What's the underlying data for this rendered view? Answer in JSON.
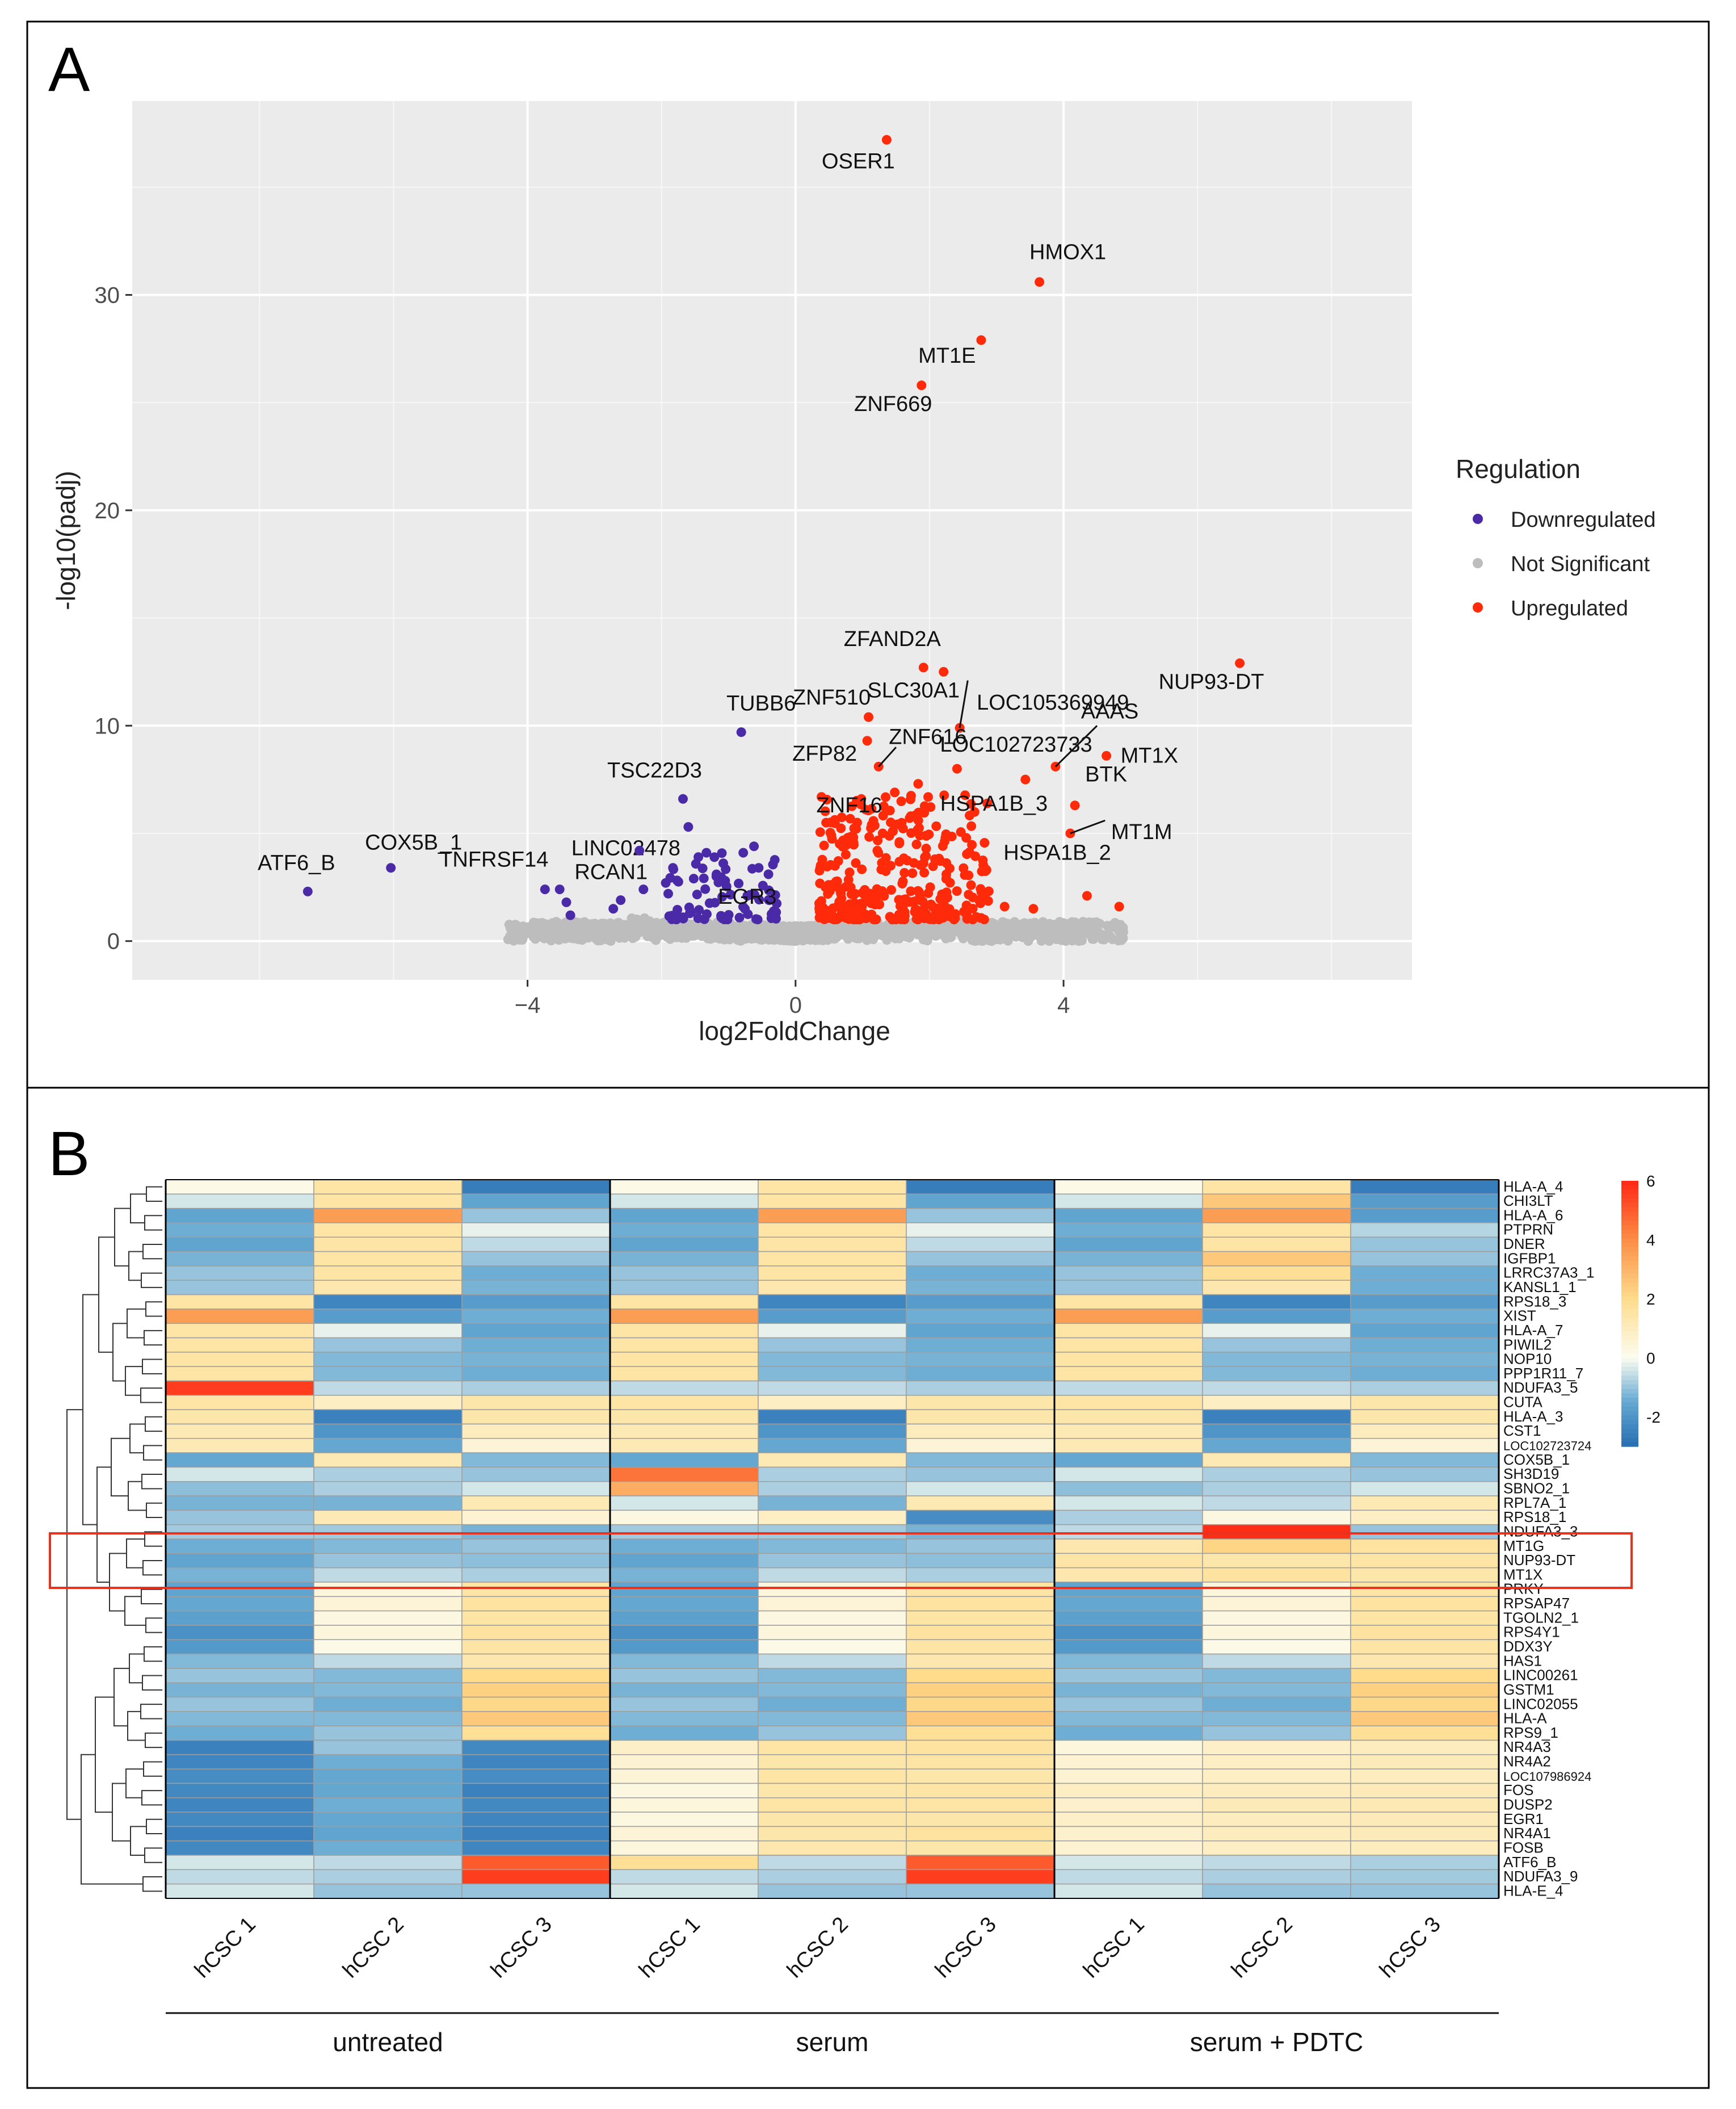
{
  "panels": {
    "a_label": "A",
    "b_label": "B"
  },
  "colors": {
    "down": "#4b2aa8",
    "ns": "#bdbdbd",
    "up": "#ff2a0a",
    "panel_bg": "#ebebeb",
    "highlight": "#e8321e"
  },
  "chart_data": [
    {
      "type": "scatter",
      "title": "",
      "xlabel": "log2FoldChange",
      "ylabel": "-log10(padj)",
      "xlim": [
        -9.9,
        9.2
      ],
      "ylim": [
        -1.8,
        39.0
      ],
      "xticks": [
        -4,
        0,
        4
      ],
      "xtick_labels": [
        "−4",
        "0",
        "4"
      ],
      "yticks": [
        0,
        10,
        20,
        30
      ],
      "ytick_labels": [
        "0",
        "10",
        "20",
        "30"
      ],
      "legend": {
        "title": "Regulation",
        "position": "right",
        "entries": [
          {
            "key": "down",
            "label": "Downregulated"
          },
          {
            "key": "ns",
            "label": "Not Significant"
          },
          {
            "key": "up",
            "label": "Upregulated"
          }
        ]
      },
      "labeled_points": [
        {
          "x": 1.36,
          "y": 37.2,
          "reg": "up",
          "label": "OSER1"
        },
        {
          "x": 3.64,
          "y": 30.6,
          "reg": "up",
          "label": "HMOX1"
        },
        {
          "x": 2.77,
          "y": 27.9,
          "reg": "up",
          "label": "MT1E"
        },
        {
          "x": 1.88,
          "y": 25.8,
          "reg": "up",
          "label": "ZNF669"
        },
        {
          "x": 6.63,
          "y": 12.9,
          "reg": "up",
          "label": "NUP93-DT"
        },
        {
          "x": 1.91,
          "y": 12.7,
          "reg": "up",
          "label": "ZFAND2A"
        },
        {
          "x": 2.21,
          "y": 12.5,
          "reg": "up",
          "label": "SLC30A1"
        },
        {
          "x": 2.45,
          "y": 9.9,
          "reg": "up",
          "label": "LOC105369949"
        },
        {
          "x": 1.09,
          "y": 10.4,
          "reg": "up",
          "label": "ZNF510"
        },
        {
          "x": -0.81,
          "y": 9.7,
          "reg": "down",
          "label": "TUBB6"
        },
        {
          "x": 3.88,
          "y": 8.1,
          "reg": "up",
          "label": "AAAS"
        },
        {
          "x": 4.64,
          "y": 8.6,
          "reg": "up",
          "label": "MT1X"
        },
        {
          "x": 1.07,
          "y": 9.3,
          "reg": "up",
          "label": "ZFP82"
        },
        {
          "x": 1.24,
          "y": 8.1,
          "reg": "up",
          "label": "ZNF616"
        },
        {
          "x": 2.41,
          "y": 8.0,
          "reg": "up",
          "label": "LOC102723733"
        },
        {
          "x": 3.43,
          "y": 7.5,
          "reg": "up",
          "label": "HSPA1B_3"
        },
        {
          "x": 4.17,
          "y": 6.3,
          "reg": "up",
          "label": "BTK"
        },
        {
          "x": 1.48,
          "y": 6.9,
          "reg": "up",
          "label": "ZNF16"
        },
        {
          "x": -1.68,
          "y": 6.6,
          "reg": "down",
          "label": "TSC22D3"
        },
        {
          "x": -1.6,
          "y": 5.3,
          "reg": "down",
          "label": "LINC02478"
        },
        {
          "x": 4.1,
          "y": 5.0,
          "reg": "up",
          "label": "MT1M"
        },
        {
          "x": -2.33,
          "y": 4.2,
          "reg": "down",
          "label": "RCAN1"
        },
        {
          "x": 2.85,
          "y": 3.3,
          "reg": "up",
          "label": "HSPA1B_2"
        },
        {
          "x": -6.04,
          "y": 3.4,
          "reg": "down",
          "label": "COX5B_1"
        },
        {
          "x": -3.74,
          "y": 2.4,
          "reg": "down",
          "label": "TNFRSF14"
        },
        {
          "x": -7.28,
          "y": 2.3,
          "reg": "down",
          "label": "ATF6_B"
        },
        {
          "x": -0.72,
          "y": 2.1,
          "reg": "down",
          "label": "EGR3"
        }
      ],
      "other_significant_points": [
        {
          "x": 0.92,
          "y": 5.5,
          "reg": "up"
        },
        {
          "x": 1.05,
          "y": 6.1,
          "reg": "up"
        },
        {
          "x": 1.3,
          "y": 5.0,
          "reg": "up"
        },
        {
          "x": 1.55,
          "y": 4.6,
          "reg": "up"
        },
        {
          "x": 1.72,
          "y": 5.8,
          "reg": "up"
        },
        {
          "x": 1.95,
          "y": 4.3,
          "reg": "up"
        },
        {
          "x": 2.08,
          "y": 3.8,
          "reg": "up"
        },
        {
          "x": 1.83,
          "y": 7.3,
          "reg": "up"
        },
        {
          "x": 1.22,
          "y": 4.2,
          "reg": "up"
        },
        {
          "x": 0.78,
          "y": 4.8,
          "reg": "up"
        },
        {
          "x": 2.25,
          "y": 3.1,
          "reg": "up"
        },
        {
          "x": 2.62,
          "y": 2.6,
          "reg": "up"
        },
        {
          "x": 3.12,
          "y": 1.6,
          "reg": "up"
        },
        {
          "x": 3.55,
          "y": 1.5,
          "reg": "up"
        },
        {
          "x": 4.35,
          "y": 2.1,
          "reg": "up"
        },
        {
          "x": 4.83,
          "y": 1.6,
          "reg": "up"
        },
        {
          "x": 2.74,
          "y": 1.9,
          "reg": "up"
        },
        {
          "x": 1.42,
          "y": 3.5,
          "reg": "up"
        },
        {
          "x": -2.72,
          "y": 1.5,
          "reg": "down"
        },
        {
          "x": -2.61,
          "y": 1.9,
          "reg": "down"
        },
        {
          "x": -2.27,
          "y": 2.4,
          "reg": "down"
        },
        {
          "x": -1.83,
          "y": 3.4,
          "reg": "down"
        },
        {
          "x": -1.45,
          "y": 3.9,
          "reg": "down"
        },
        {
          "x": -1.33,
          "y": 4.1,
          "reg": "down"
        },
        {
          "x": -1.18,
          "y": 3.1,
          "reg": "down"
        },
        {
          "x": -1.05,
          "y": 2.8,
          "reg": "down"
        },
        {
          "x": -0.78,
          "y": 4.1,
          "reg": "down"
        },
        {
          "x": -0.62,
          "y": 4.4,
          "reg": "down"
        },
        {
          "x": -0.55,
          "y": 3.4,
          "reg": "down"
        },
        {
          "x": -3.52,
          "y": 2.4,
          "reg": "down"
        },
        {
          "x": -3.42,
          "y": 1.8,
          "reg": "down"
        },
        {
          "x": -3.36,
          "y": 1.2,
          "reg": "down"
        },
        {
          "x": -1.9,
          "y": 2.2,
          "reg": "down"
        },
        {
          "x": -1.52,
          "y": 2.9,
          "reg": "down"
        }
      ],
      "cluster_regions": [
        {
          "reg": "up",
          "x_range": [
            0.35,
            2.9
          ],
          "y_range": [
            1.0,
            6.8
          ],
          "count": 320
        },
        {
          "reg": "down",
          "x_range": [
            -2.0,
            -0.28
          ],
          "y_range": [
            1.0,
            4.3
          ],
          "count": 70
        },
        {
          "reg": "ns",
          "x_range": [
            -4.3,
            4.9
          ],
          "y_range": [
            0,
            1.3
          ],
          "count": 1400
        }
      ]
    },
    {
      "type": "heatmap",
      "columns": [
        "hCSC 1",
        "hCSC 2",
        "hCSC 3",
        "hCSC 1",
        "hCSC 2",
        "hCSC 3",
        "hCSC 1",
        "hCSC 2",
        "hCSC 3"
      ],
      "groups": [
        {
          "label": "untreated",
          "span": [
            0,
            2
          ]
        },
        {
          "label": "serum",
          "span": [
            3,
            5
          ]
        },
        {
          "label": "serum + PDTC",
          "span": [
            6,
            8
          ]
        }
      ],
      "rows": [
        "HLA-A_4",
        "CHI3LT",
        "HLA-A_6",
        "PTPRN",
        "DNER",
        "IGFBP1",
        "LRRC37A3_1",
        "KANSL1_1",
        "RPS18_3",
        "XIST",
        "HLA-A_7",
        "PIWIL2",
        "NOP10",
        "PPP1R11_7",
        "NDUFA3_5",
        "CUTA",
        "HLA-A_3",
        "CST1",
        "LOC102723724",
        "COX5B_1",
        "SH3D19",
        "SBNO2_1",
        "RPL7A_1",
        "RPS18_1",
        "NDUFA3_3",
        "MT1G",
        "NUP93-DT",
        "MT1X",
        "PRKY",
        "RPSAP47",
        "TGOLN2_1",
        "RPS4Y1",
        "DDX3Y",
        "HAS1",
        "LINC00261",
        "GSTM1",
        "LINC02055",
        "HLA-A",
        "RPS9_1",
        "NR4A3",
        "NR4A2",
        "LOC107986924",
        "FOS",
        "DUSP2",
        "EGR1",
        "NR4A1",
        "FOSB",
        "ATF6_B",
        "NDUFA3_9",
        "HLA-E_4"
      ],
      "values": [
        [
          0.2,
          1.5,
          -2.6,
          0.2,
          1.5,
          -2.6,
          0.2,
          1.5,
          -2.6
        ],
        [
          -0.4,
          1.5,
          -1.6,
          -0.4,
          1.5,
          -1.6,
          -0.4,
          2.5,
          -1.8
        ],
        [
          -1.6,
          3.6,
          -1.0,
          -1.6,
          3.6,
          -1.0,
          -1.6,
          3.6,
          -1.8
        ],
        [
          -1.4,
          1.5,
          -0.2,
          -1.4,
          1.5,
          -0.2,
          -1.4,
          1.5,
          -0.7
        ],
        [
          -1.6,
          1.5,
          -0.6,
          -1.6,
          1.5,
          -0.6,
          -1.6,
          1.5,
          -1.0
        ],
        [
          -1.3,
          1.5,
          -1.0,
          -1.3,
          1.5,
          -1.0,
          -1.3,
          2.5,
          -1.0
        ],
        [
          -1.0,
          1.5,
          -1.4,
          -1.0,
          1.5,
          -1.4,
          -1.0,
          1.8,
          -1.4
        ],
        [
          -1.0,
          1.3,
          -1.3,
          -1.0,
          1.3,
          -1.3,
          -1.0,
          1.3,
          -1.4
        ],
        [
          1.5,
          -2.4,
          -1.8,
          1.5,
          -2.4,
          -1.8,
          1.5,
          -2.4,
          -1.8
        ],
        [
          3.6,
          -1.8,
          -1.4,
          3.6,
          -1.8,
          -1.4,
          3.6,
          -1.8,
          -1.4
        ],
        [
          1.5,
          -0.2,
          -1.6,
          1.5,
          -0.2,
          -1.6,
          1.5,
          -0.2,
          -1.6
        ],
        [
          1.5,
          -1.0,
          -1.4,
          1.5,
          -1.0,
          -1.4,
          1.5,
          -1.0,
          -1.4
        ],
        [
          1.5,
          -1.2,
          -1.3,
          1.5,
          -1.2,
          -1.3,
          1.5,
          -1.2,
          -1.3
        ],
        [
          1.5,
          -1.2,
          -1.4,
          1.5,
          -1.2,
          -1.4,
          1.5,
          -1.2,
          -1.4
        ],
        [
          5.6,
          -0.6,
          -0.8,
          -0.6,
          -0.6,
          -0.8,
          -0.6,
          -0.6,
          -0.8
        ],
        [
          1.5,
          0.9,
          1.4,
          1.5,
          0.9,
          1.4,
          1.5,
          0.9,
          1.4
        ],
        [
          1.4,
          -2.5,
          1.4,
          1.4,
          -2.5,
          1.4,
          1.4,
          -2.5,
          1.4
        ],
        [
          1.2,
          -2.0,
          1.0,
          1.2,
          -2.0,
          1.0,
          1.2,
          -2.0,
          1.0
        ],
        [
          1.2,
          -1.5,
          0.5,
          1.2,
          -1.5,
          0.5,
          1.2,
          -1.5,
          0.5
        ],
        [
          -1.5,
          1.2,
          -1.2,
          -1.5,
          1.2,
          -1.2,
          -1.5,
          1.2,
          -1.2
        ],
        [
          -0.4,
          -0.8,
          -1.0,
          4.5,
          -0.8,
          -1.0,
          -0.4,
          -0.8,
          -1.0
        ],
        [
          -1.1,
          -0.8,
          -0.4,
          3.2,
          -0.8,
          -0.4,
          -1.1,
          -0.8,
          -0.4
        ],
        [
          -1.3,
          -1.3,
          1.2,
          -0.4,
          -1.3,
          1.2,
          -0.4,
          -0.6,
          1.2
        ],
        [
          -1.0,
          1.2,
          0.6,
          0.3,
          0.9,
          -2.2,
          -0.8,
          0.3,
          0.9
        ],
        [
          -0.9,
          -0.9,
          -1.3,
          -0.9,
          -0.9,
          -1.3,
          -0.6,
          5.9,
          -1.0
        ],
        [
          -1.4,
          -1.2,
          -1.0,
          -1.4,
          -1.2,
          -1.0,
          1.3,
          2.2,
          1.6
        ],
        [
          -1.6,
          -1.0,
          -1.1,
          -1.6,
          -1.0,
          -1.1,
          1.5,
          1.4,
          1.5
        ],
        [
          -1.3,
          -0.6,
          -0.8,
          -1.3,
          -0.6,
          -0.8,
          1.3,
          1.6,
          1.4
        ],
        [
          -1.6,
          0.4,
          1.5,
          -1.6,
          0.4,
          1.5,
          -1.6,
          0.4,
          1.5
        ],
        [
          -1.5,
          0.5,
          1.6,
          -1.5,
          0.5,
          1.6,
          -1.5,
          0.5,
          1.6
        ],
        [
          -1.7,
          0.3,
          1.5,
          -1.7,
          0.3,
          1.5,
          -1.7,
          0.3,
          1.5
        ],
        [
          -2.1,
          0.4,
          1.6,
          -2.1,
          0.4,
          1.6,
          -2.1,
          0.4,
          1.6
        ],
        [
          -1.9,
          0.2,
          1.5,
          -1.9,
          0.2,
          1.5,
          -1.9,
          0.2,
          1.5
        ],
        [
          -1.2,
          -0.6,
          1.3,
          -1.2,
          -0.6,
          1.3,
          -1.2,
          -0.6,
          1.3
        ],
        [
          -1.0,
          -1.2,
          2.0,
          -1.0,
          -1.2,
          2.0,
          -1.0,
          -1.2,
          2.0
        ],
        [
          -1.3,
          -1.2,
          2.3,
          -1.3,
          -1.2,
          2.3,
          -1.3,
          -1.2,
          2.3
        ],
        [
          -1.0,
          -1.4,
          2.1,
          -1.0,
          -1.4,
          2.1,
          -1.0,
          -1.4,
          2.1
        ],
        [
          -1.2,
          -1.2,
          2.5,
          -1.2,
          -1.2,
          2.5,
          -1.2,
          -1.2,
          2.5
        ],
        [
          -1.4,
          -1.0,
          1.8,
          -1.4,
          -1.0,
          1.8,
          -1.4,
          -1.0,
          1.8
        ],
        [
          -2.5,
          -1.0,
          -2.3,
          0.8,
          1.5,
          1.6,
          0.4,
          0.8,
          1.0
        ],
        [
          -2.4,
          -1.4,
          -2.4,
          0.6,
          1.4,
          1.5,
          0.6,
          0.9,
          1.1
        ],
        [
          -2.2,
          -1.5,
          -2.2,
          0.5,
          1.5,
          1.4,
          0.6,
          0.9,
          1.0
        ],
        [
          -2.3,
          -1.5,
          -2.5,
          0.3,
          1.4,
          1.5,
          0.9,
          1.0,
          1.1
        ],
        [
          -2.4,
          -1.4,
          -2.3,
          0.4,
          1.5,
          1.5,
          0.7,
          1.1,
          1.2
        ],
        [
          -2.3,
          -1.5,
          -2.4,
          0.3,
          1.4,
          1.4,
          0.8,
          1.0,
          1.1
        ],
        [
          -2.5,
          -1.6,
          -2.5,
          0.5,
          1.4,
          1.6,
          0.7,
          1.0,
          1.1
        ],
        [
          -2.3,
          -1.4,
          -2.4,
          0.4,
          1.3,
          1.4,
          0.6,
          0.9,
          1.0
        ],
        [
          -0.4,
          -0.6,
          5.0,
          1.8,
          -0.6,
          5.0,
          -0.4,
          -0.6,
          -0.8
        ],
        [
          -0.6,
          -0.8,
          5.6,
          -0.6,
          -0.8,
          5.6,
          -0.6,
          -0.8,
          -0.9
        ],
        [
          -0.4,
          -1.0,
          -1.0,
          -0.4,
          -1.0,
          -1.0,
          -0.4,
          -1.0,
          -1.0
        ]
      ],
      "highlighted_rows": [
        "MT1G",
        "NUP93-DT",
        "MT1X"
      ],
      "color_scale": {
        "min": -3,
        "max": 6,
        "ticks": [
          6,
          4,
          2,
          0,
          -2
        ],
        "tick_labels": [
          "6",
          "4",
          "2",
          "0",
          "-2"
        ]
      }
    }
  ]
}
